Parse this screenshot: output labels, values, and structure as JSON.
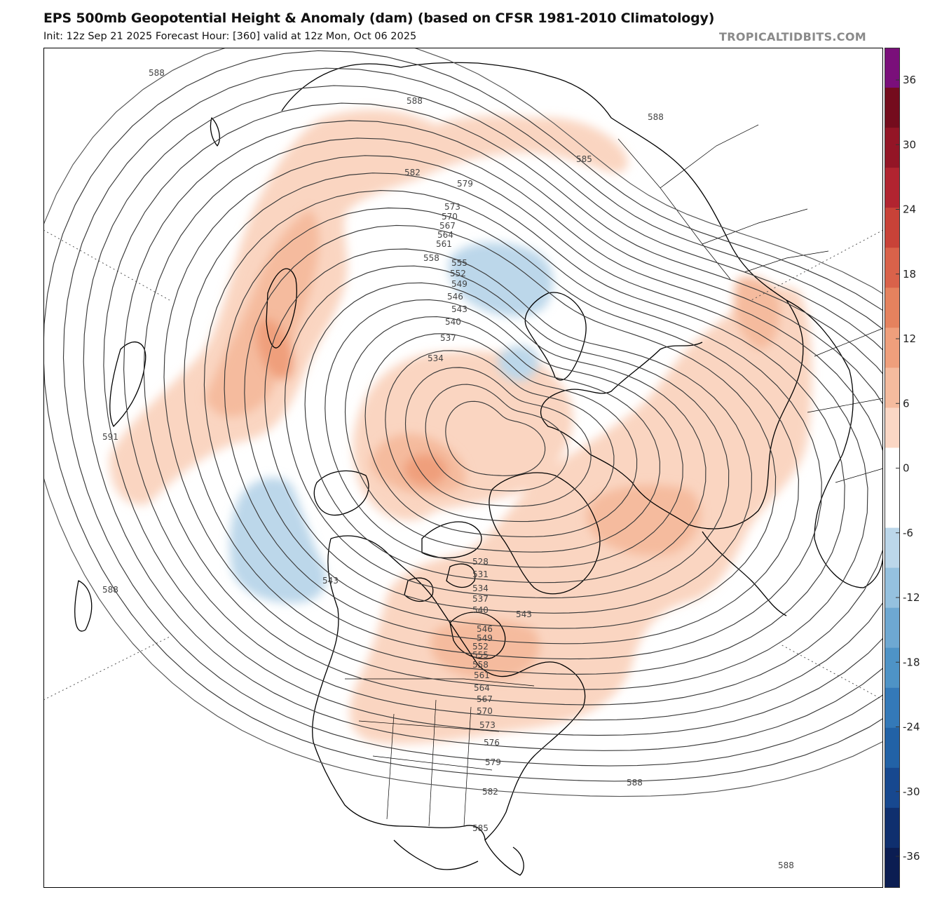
{
  "header": {
    "title": "EPS 500mb Geopotential Height & Anomaly (dam) (based on CFSR 1981-2010 Climatology)",
    "subtitle": "Init: 12z Sep 21 2025   Forecast Hour: [360]   valid at 12z Mon, Oct 06 2025",
    "brand": "TROPICALTIDBITS.COM"
  },
  "colorbar": {
    "ticks": [
      "36",
      "30",
      "24",
      "18",
      "12",
      "6",
      "0",
      "-6",
      "-12",
      "-18",
      "-24",
      "-30",
      "-36"
    ],
    "colors": [
      "#0b1d52",
      "#0f2f6e",
      "#17488f",
      "#2262a6",
      "#3479b8",
      "#4e93c6",
      "#6ea8d2",
      "#95c1df",
      "#bcd7ea",
      "#ffffff",
      "#ffffff",
      "#fbd7c5",
      "#f5bb9e",
      "#ef9f7c",
      "#e5825e",
      "#d9624a",
      "#c84238",
      "#b12430",
      "#931526",
      "#740c1d",
      "#7a0f7a"
    ]
  },
  "map": {
    "height_contours": [
      "528",
      "531",
      "534",
      "537",
      "540",
      "543",
      "546",
      "549",
      "552",
      "555",
      "558",
      "561",
      "564",
      "567",
      "570",
      "573",
      "576",
      "579",
      "582",
      "585",
      "588",
      "591"
    ],
    "contour_labels": [
      {
        "text": "588",
        "id": "lbl-588-nw"
      },
      {
        "text": "588",
        "id": "lbl-588-n"
      },
      {
        "text": "588",
        "id": "lbl-588-ne"
      },
      {
        "text": "585",
        "id": "lbl-585-ne"
      },
      {
        "text": "582",
        "id": "lbl-582-n"
      },
      {
        "text": "579",
        "id": "lbl-579-n"
      },
      {
        "text": "573",
        "id": "lbl-573-n"
      },
      {
        "text": "570",
        "id": "lbl-570-n"
      },
      {
        "text": "567",
        "id": "lbl-567-n"
      },
      {
        "text": "564",
        "id": "lbl-564-n"
      },
      {
        "text": "561",
        "id": "lbl-561-n"
      },
      {
        "text": "558",
        "id": "lbl-558-n"
      },
      {
        "text": "555",
        "id": "lbl-555-n"
      },
      {
        "text": "552",
        "id": "lbl-552-n"
      },
      {
        "text": "549",
        "id": "lbl-549-n"
      },
      {
        "text": "546",
        "id": "lbl-546-n"
      },
      {
        "text": "543",
        "id": "lbl-543-n"
      },
      {
        "text": "540",
        "id": "lbl-540-n"
      },
      {
        "text": "537",
        "id": "lbl-537-n"
      },
      {
        "text": "534",
        "id": "lbl-534-n"
      },
      {
        "text": "591",
        "id": "lbl-591-w"
      },
      {
        "text": "588",
        "id": "lbl-588-w"
      },
      {
        "text": "543",
        "id": "lbl-543-pac"
      },
      {
        "text": "528",
        "id": "lbl-528-s"
      },
      {
        "text": "531",
        "id": "lbl-531-s"
      },
      {
        "text": "534",
        "id": "lbl-534-s"
      },
      {
        "text": "537",
        "id": "lbl-537-s"
      },
      {
        "text": "540",
        "id": "lbl-540-s"
      },
      {
        "text": "543",
        "id": "lbl-543-s"
      },
      {
        "text": "546",
        "id": "lbl-546-s"
      },
      {
        "text": "549",
        "id": "lbl-549-s"
      },
      {
        "text": "552",
        "id": "lbl-552-s"
      },
      {
        "text": "555",
        "id": "lbl-555-s"
      },
      {
        "text": "558",
        "id": "lbl-558-s"
      },
      {
        "text": "561",
        "id": "lbl-561-s"
      },
      {
        "text": "564",
        "id": "lbl-564-s"
      },
      {
        "text": "567",
        "id": "lbl-567-s"
      },
      {
        "text": "570",
        "id": "lbl-570-s"
      },
      {
        "text": "573",
        "id": "lbl-573-s"
      },
      {
        "text": "576",
        "id": "lbl-576-s"
      },
      {
        "text": "579",
        "id": "lbl-579-s"
      },
      {
        "text": "582",
        "id": "lbl-582-s"
      },
      {
        "text": "585",
        "id": "lbl-585-s"
      },
      {
        "text": "588",
        "id": "lbl-588-se"
      },
      {
        "text": "588",
        "id": "lbl-588-sse"
      }
    ]
  }
}
